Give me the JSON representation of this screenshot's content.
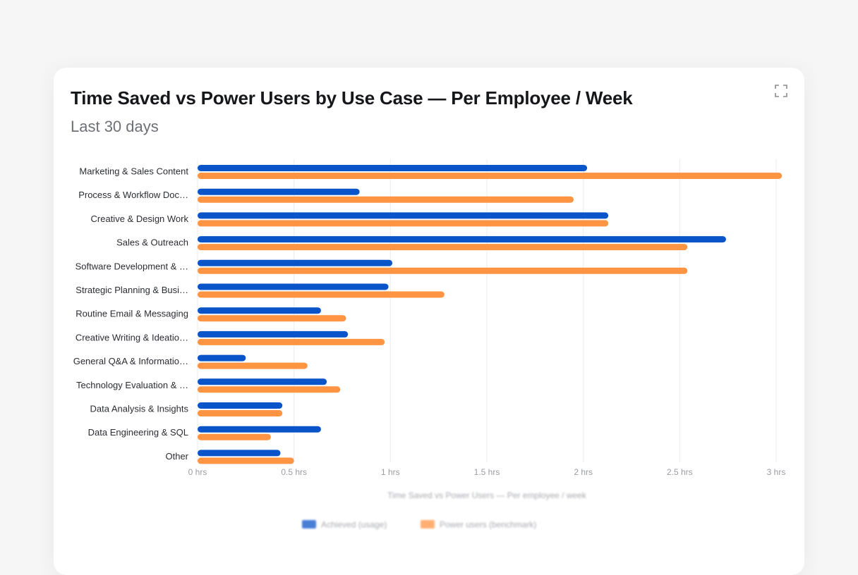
{
  "header": {
    "title": "Time Saved vs Power Users by Use Case — Per Employee / Week",
    "subtitle": "Last 30 days",
    "expand_icon": "expand-icon"
  },
  "chart_data": {
    "type": "bar",
    "orientation": "horizontal",
    "categories": [
      "Marketing & Sales Content",
      "Process & Workflow Doc…",
      "Creative & Design Work",
      "Sales & Outreach",
      "Software Development & …",
      "Strategic Planning & Busi…",
      "Routine Email & Messaging",
      "Creative Writing & Ideatio…",
      "General Q&A & Informatio…",
      "Technology Evaluation & …",
      "Data Analysis & Insights",
      "Data Engineering & SQL",
      "Other"
    ],
    "series": [
      {
        "name": "Achieved (usage)",
        "color": "#0a54c9",
        "values": [
          2.02,
          0.84,
          2.13,
          2.74,
          1.01,
          0.99,
          0.64,
          0.78,
          0.25,
          0.67,
          0.44,
          0.64,
          0.43
        ]
      },
      {
        "name": "Power users (benchmark)",
        "color": "#ff9442",
        "values": [
          3.03,
          1.95,
          2.13,
          2.54,
          2.54,
          1.28,
          0.77,
          0.97,
          0.57,
          0.74,
          0.44,
          0.38,
          0.5
        ]
      }
    ],
    "xlim": [
      0,
      3
    ],
    "xticks": [
      "0 hrs",
      "0.5 hrs",
      "1 hrs",
      "1.5 hrs",
      "2 hrs",
      "2.5 hrs",
      "3 hrs"
    ],
    "xlabel": "Time Saved vs Power Users — Per employee / week",
    "grid": true,
    "legend_position": "bottom-center"
  }
}
